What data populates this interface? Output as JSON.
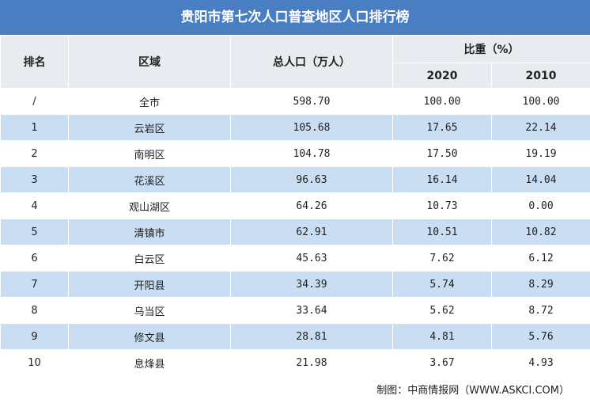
{
  "title": "贵阳市第七次人口普查地区人口排行榜",
  "headers": {
    "rank": "排名",
    "region": "区域",
    "population": "总人口（万人）",
    "share": "比重（%）",
    "year_2020": "2020",
    "year_2010": "2010"
  },
  "rows": [
    {
      "rank": "/",
      "region": "全市",
      "population": "598.70",
      "share_2020": "100.00",
      "share_2010": "100.00"
    },
    {
      "rank": "1",
      "region": "云岩区",
      "population": "105.68",
      "share_2020": "17.65",
      "share_2010": "22.14"
    },
    {
      "rank": "2",
      "region": "南明区",
      "population": "104.78",
      "share_2020": "17.50",
      "share_2010": "19.19"
    },
    {
      "rank": "3",
      "region": "花溪区",
      "population": "96.63",
      "share_2020": "16.14",
      "share_2010": "14.04"
    },
    {
      "rank": "4",
      "region": "观山湖区",
      "population": "64.26",
      "share_2020": "10.73",
      "share_2010": "0.00"
    },
    {
      "rank": "5",
      "region": "清镇市",
      "population": "62.91",
      "share_2020": "10.51",
      "share_2010": "10.82"
    },
    {
      "rank": "6",
      "region": "白云区",
      "population": "45.63",
      "share_2020": "7.62",
      "share_2010": "6.12"
    },
    {
      "rank": "7",
      "region": "开阳县",
      "population": "34.39",
      "share_2020": "5.74",
      "share_2010": "8.29"
    },
    {
      "rank": "8",
      "region": "乌当区",
      "population": "33.64",
      "share_2020": "5.62",
      "share_2010": "8.72"
    },
    {
      "rank": "9",
      "region": "修文县",
      "population": "28.81",
      "share_2020": "4.81",
      "share_2010": "5.76"
    },
    {
      "rank": "10",
      "region": "息烽县",
      "population": "21.98",
      "share_2020": "3.67",
      "share_2010": "4.93"
    }
  ],
  "footer": "制图：中商情报网（WWW.ASKCI.COM）",
  "colors": {
    "title_bg": "#4a7ec3",
    "header_bg": "#e8ebf0",
    "stripe": "#c9ddf3"
  }
}
